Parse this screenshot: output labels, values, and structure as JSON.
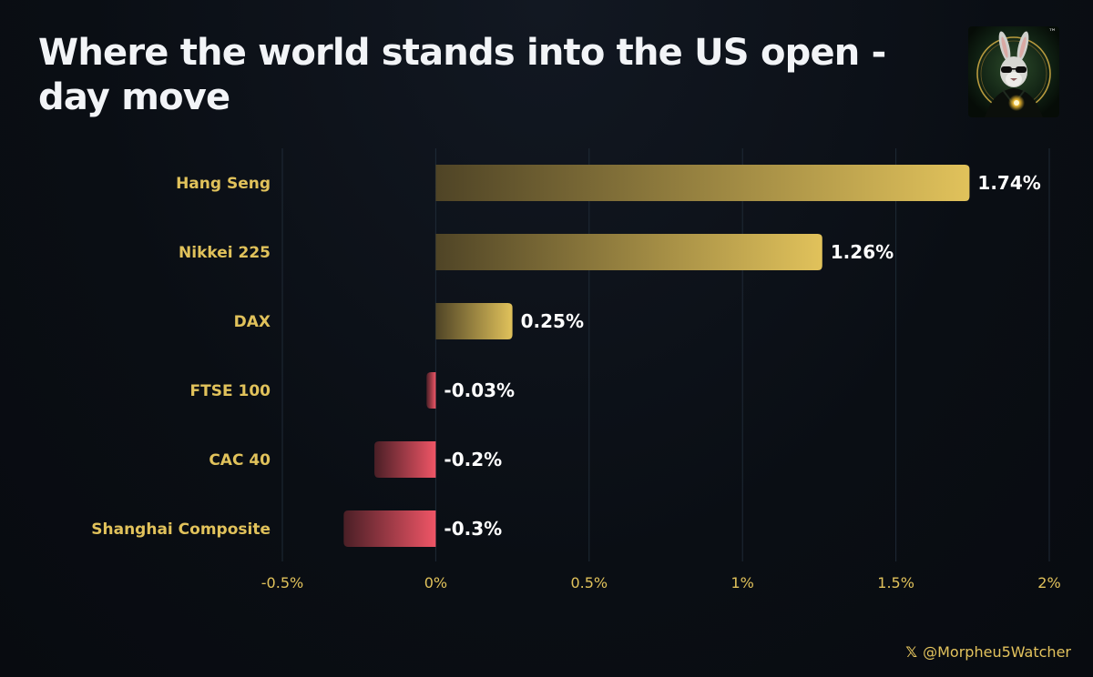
{
  "header": {
    "title": "Where the world stands into the US open - day move"
  },
  "logo": {
    "tm_mark": "™",
    "icon": "rabbit-logo-icon"
  },
  "footer": {
    "x_icon_glyph": "𝕏",
    "handle": "@Morpheu5Watcher"
  },
  "colors": {
    "positive_dark": "#4f4426",
    "positive_light": "#e1c25b",
    "negative_dark": "#4a1f26",
    "negative_light": "#ef5566",
    "category_label": "#e1c25b",
    "tick_label": "#e1c25b",
    "value_label": "#ffffff",
    "gridline": "#1f2a36"
  },
  "chart_data": {
    "type": "bar",
    "orientation": "horizontal",
    "categories": [
      "Hang Seng",
      "Nikkei 225",
      "DAX",
      "FTSE 100",
      "CAC 40",
      "Shanghai Composite"
    ],
    "values": [
      1.74,
      1.26,
      0.25,
      -0.03,
      -0.2,
      -0.3
    ],
    "value_labels": [
      "1.74%",
      "1.26%",
      "0.25%",
      "-0.03%",
      "-0.2%",
      "-0.3%"
    ],
    "xlim": [
      -0.5,
      2
    ],
    "xticks": [
      -0.5,
      0,
      0.5,
      1,
      1.5,
      2
    ],
    "xtick_labels": [
      "-0.5%",
      "0%",
      "0.5%",
      "1%",
      "1.5%",
      "2%"
    ],
    "title": "Where the world stands into the US open - day move",
    "xlabel": "",
    "ylabel": "",
    "grid": "vertical",
    "legend": "none"
  }
}
